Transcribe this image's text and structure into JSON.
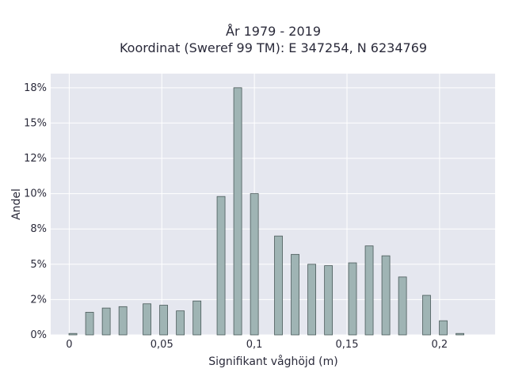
{
  "chart_data": {
    "type": "bar",
    "title_line1": "År 1979 - 2019",
    "title_line2": "Koordinat (Sweref 99 TM): E 347254, N 6234769",
    "xlabel": "Signifikant våghöjd (m)",
    "ylabel": "Andel",
    "grid": true,
    "legend": "none",
    "xlim": [
      -0.01,
      0.23
    ],
    "ylim": [
      0,
      0.185
    ],
    "x_ticks": [
      {
        "value": 0,
        "label": "0"
      },
      {
        "value": 0.05,
        "label": "0,05"
      },
      {
        "value": 0.1,
        "label": "0,1"
      },
      {
        "value": 0.15,
        "label": "0,15"
      },
      {
        "value": 0.2,
        "label": "0,2"
      }
    ],
    "y_ticks": [
      {
        "value": 0,
        "label": "0%"
      },
      {
        "value": 0.025,
        "label": "2%"
      },
      {
        "value": 0.05,
        "label": "5%"
      },
      {
        "value": 0.075,
        "label": "8%"
      },
      {
        "value": 0.1,
        "label": "10%"
      },
      {
        "value": 0.125,
        "label": "12%"
      },
      {
        "value": 0.15,
        "label": "15%"
      },
      {
        "value": 0.175,
        "label": "18%"
      }
    ],
    "x": [
      0.002,
      0.011,
      0.02,
      0.029,
      0.042,
      0.051,
      0.06,
      0.069,
      0.082,
      0.091,
      0.1,
      0.113,
      0.122,
      0.131,
      0.14,
      0.153,
      0.162,
      0.171,
      0.18,
      0.193,
      0.202,
      0.211
    ],
    "values": [
      0.001,
      0.016,
      0.019,
      0.02,
      0.022,
      0.021,
      0.017,
      0.024,
      0.098,
      0.175,
      0.1,
      0.07,
      0.057,
      0.05,
      0.049,
      0.051,
      0.063,
      0.056,
      0.041,
      0.028,
      0.01,
      0.001
    ],
    "colors": {
      "plot_bg": "#e5e7ef",
      "grid": "#ffffff",
      "bar_fill": "#9fb4b4",
      "bar_stroke": "#4a5a5a",
      "text": "#2a2a3a"
    }
  }
}
